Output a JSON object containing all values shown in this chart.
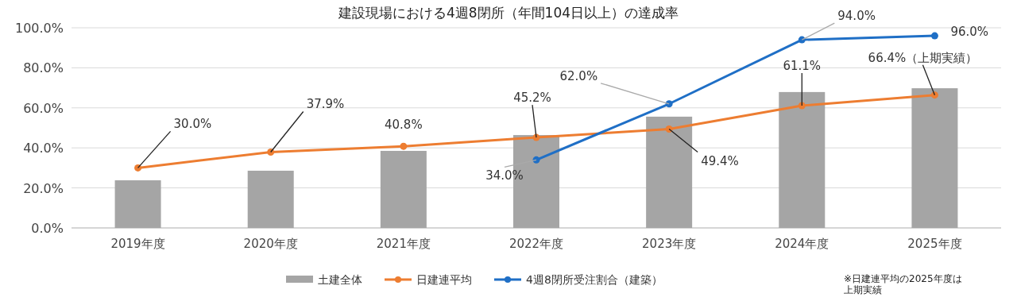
{
  "chart_data": {
    "type": "bar",
    "title": "建設現場における4週8閉所（年間104日以上）の達成率",
    "categories": [
      "2019年度",
      "2020年度",
      "2021年度",
      "2022年度",
      "2023年度",
      "2024年度",
      "2025年度"
    ],
    "series": [
      {
        "name": "土建全体",
        "color": "#a5a5a5",
        "values": [
          23.8,
          28.6,
          38.5,
          46.4,
          55.6,
          67.9,
          69.8
        ]
      },
      {
        "name": "日建連平均",
        "type": "line",
        "color": "#ed7d31",
        "marker": "circle",
        "values": [
          30.0,
          37.9,
          40.8,
          45.2,
          49.4,
          61.1,
          66.4
        ],
        "value_labels": [
          "30.0%",
          "37.9%",
          "40.8%",
          "45.2%",
          "49.4%",
          "61.1%",
          "66.4%（上期実績）"
        ]
      },
      {
        "name": "4週8閉所受注割合（建築）",
        "type": "line",
        "color": "#1f6fc6",
        "marker": "circle",
        "values": [
          null,
          null,
          null,
          34.0,
          62.0,
          94.0,
          96.0
        ],
        "value_labels": [
          null,
          null,
          null,
          "34.0%",
          "62.0%",
          "94.0%",
          "96.0%"
        ]
      }
    ],
    "ylim": [
      0,
      100
    ],
    "yticks": [
      {
        "value": 0,
        "label": "0.0%"
      },
      {
        "value": 20,
        "label": "20.0%"
      },
      {
        "value": 40,
        "label": "40.0%"
      },
      {
        "value": 60,
        "label": "60.0%"
      },
      {
        "value": 80,
        "label": "80.0%"
      },
      {
        "value": 100,
        "label": "100.0%"
      }
    ],
    "grid": "y",
    "legend": "bottom",
    "annotations": [
      "※日建連平均の2025年度は上期実績"
    ]
  }
}
